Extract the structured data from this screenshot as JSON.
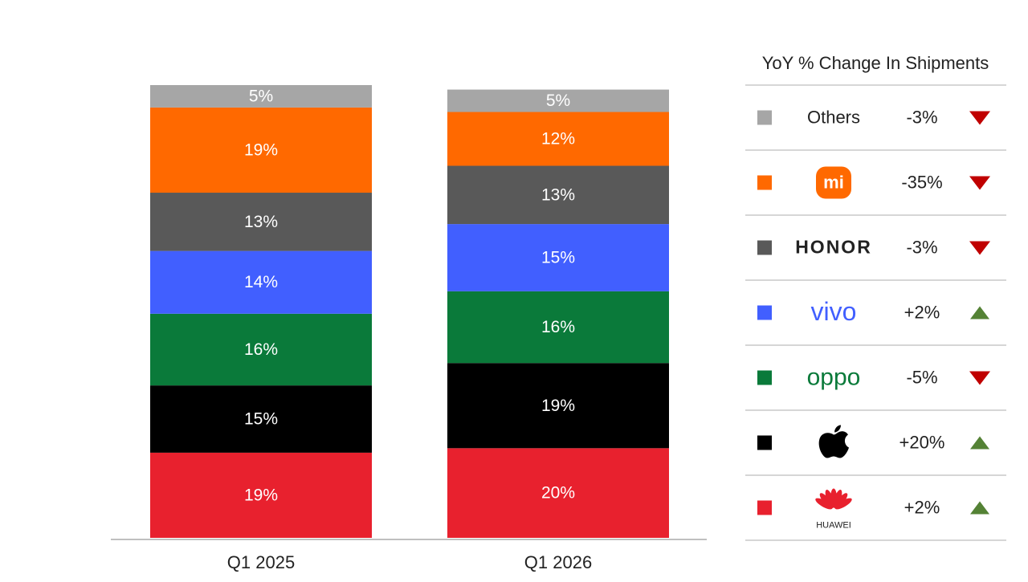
{
  "chart_data": {
    "type": "bar",
    "stacked": true,
    "categories": [
      "Q1 2025",
      "Q1 2026"
    ],
    "legend_title": "YoY % Change In Shipments",
    "series": [
      {
        "name": "Others",
        "color": "#a6a6a6",
        "values": [
          5,
          5
        ],
        "value_labels": [
          "5%",
          "5%"
        ],
        "yoy": -3,
        "yoy_label": "-3%"
      },
      {
        "name": "mi",
        "color": "#ff6900",
        "values": [
          19,
          12
        ],
        "value_labels": [
          "19%",
          "12%"
        ],
        "yoy": -35,
        "yoy_label": "-35%"
      },
      {
        "name": "HONOR",
        "color": "#595959",
        "values": [
          13,
          13
        ],
        "value_labels": [
          "13%",
          "13%"
        ],
        "yoy": -3,
        "yoy_label": "-3%"
      },
      {
        "name": "vivo",
        "color": "#415fff",
        "values": [
          14,
          15
        ],
        "value_labels": [
          "14%",
          "15%"
        ],
        "yoy": 2,
        "yoy_label": "+2%"
      },
      {
        "name": "oppo",
        "color": "#0a7a3a",
        "values": [
          16,
          16
        ],
        "value_labels": [
          "16%",
          "16%"
        ],
        "yoy": -5,
        "yoy_label": "-5%"
      },
      {
        "name": null,
        "color": "#000000",
        "values": [
          15,
          19
        ],
        "value_labels": [
          "15%",
          "19%"
        ],
        "yoy": 20,
        "yoy_label": "+20%"
      },
      {
        "name": "HUAWEI",
        "color": "#e8212e",
        "values": [
          19,
          20
        ],
        "value_labels": [
          "19%",
          "20%"
        ],
        "yoy": 2,
        "yoy_label": "+2%"
      }
    ]
  }
}
